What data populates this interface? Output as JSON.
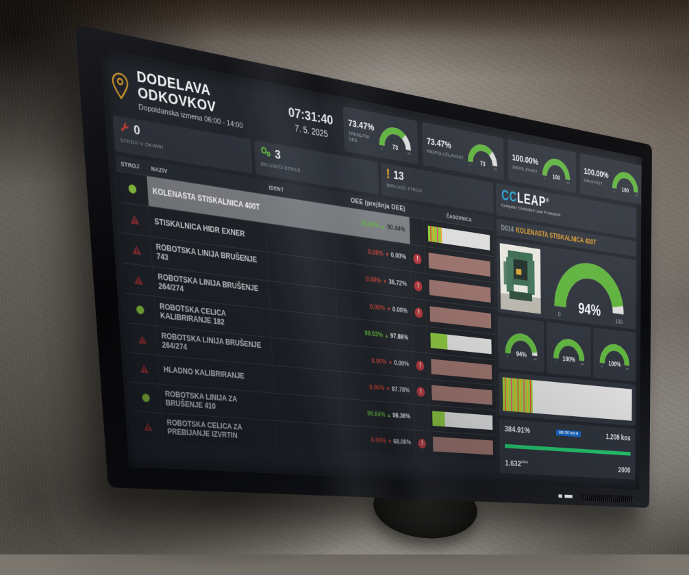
{
  "colors": {
    "bg": "#23262c",
    "panel": "#2f333b",
    "panel_dark": "#272b32",
    "green": "#5fb33d",
    "bargreen": "#8cc63f",
    "red": "#c24038",
    "tri": "#8e3036",
    "idle": "#9a726c",
    "track": "#dcdcdc",
    "sel": "#7c7e82",
    "orange": "#dd9f35",
    "teal": "#2ba4d8",
    "badge": "#1565c0",
    "progress": "#27c46d",
    "yellow": "#f0ad1f",
    "text": "#dfe2e5",
    "muted": "#9aa0a8"
  },
  "gauge_scale": {
    "min": "0",
    "max": "100"
  },
  "header": {
    "location": {
      "title": "DODELAVA ODKOVKOV",
      "subtitle": "Dopoldanska izmena 06:00 - 14:00"
    },
    "clock": {
      "time": "07:31:40",
      "date": "7. 5. 2025"
    },
    "kpis": [
      {
        "value": "73.47%",
        "label": "TRENUTNI OEE",
        "gauge_value": 73,
        "gauge_label": "73"
      },
      {
        "value": "73.47%",
        "label": "RAZPOLOŽLJIVOST",
        "gauge_value": 73,
        "gauge_label": "73"
      },
      {
        "value": "100.00%",
        "label": "ZMOGLJIVOST",
        "gauge_value": 100,
        "gauge_label": "100"
      },
      {
        "value": "100.00%",
        "label": "KAKOVOST",
        "gauge_value": 100,
        "gauge_label": "100"
      }
    ]
  },
  "counters": [
    {
      "value": "0",
      "label": "STROJI V OKVARI",
      "icon": "wrench-icon"
    },
    {
      "value": "3",
      "label": "DELUJOČI STROJI",
      "icon": "gears-icon"
    },
    {
      "value": "13",
      "label": "MIRUJOČI STROJI",
      "icon": "warning-icon"
    }
  ],
  "table": {
    "headers": {
      "stroj": "STROJ",
      "naziv": "NAZIV",
      "ident": "IDENT",
      "oee": "OEE (prejšnja OEE)",
      "casovnica": "ČASOVNICA"
    },
    "rows": [
      {
        "status": "ok",
        "name": "KOLENASTA STISKALNICA 400T",
        "ident": "",
        "oee": "93.90%",
        "trend": "up",
        "oee_prev": "90.44%",
        "alert": false,
        "selected": true,
        "bar": {
          "kind": "striped",
          "value": 22
        }
      },
      {
        "status": "fault",
        "name": "STISKALNICA HIDR EXNER",
        "ident": "",
        "oee": "0.00%",
        "trend": "down",
        "oee_prev": "0.00%",
        "alert": true,
        "selected": false,
        "bar": {
          "kind": "idle",
          "value": 100
        }
      },
      {
        "status": "fault",
        "name": "ROBOTSKA LINIJA BRUŠENJE 743",
        "ident": "",
        "oee": "0.00%",
        "trend": "down",
        "oee_prev": "36.72%",
        "alert": true,
        "selected": false,
        "bar": {
          "kind": "idle",
          "value": 100
        }
      },
      {
        "status": "fault",
        "name": "ROBOTSKA LINIJA BRUŠENJE 264/274",
        "ident": "",
        "oee": "0.00%",
        "trend": "down",
        "oee_prev": "0.00%",
        "alert": true,
        "selected": false,
        "bar": {
          "kind": "idle",
          "value": 100
        }
      },
      {
        "status": "ok",
        "name": "ROBOTSKA CELICA KALIBRIRANJE 182",
        "ident": "",
        "oee": "99.63%",
        "trend": "up",
        "oee_prev": "97.86%",
        "alert": false,
        "selected": false,
        "bar": {
          "kind": "green",
          "value": 27
        }
      },
      {
        "status": "fault",
        "name": "ROBOTSKA LINIJA BRUŠENJE 264/274",
        "ident": "",
        "oee": "0.00%",
        "trend": "down",
        "oee_prev": "0.00%",
        "alert": true,
        "selected": false,
        "bar": {
          "kind": "idle",
          "value": 100
        }
      },
      {
        "status": "fault",
        "name": "HLADNO KALIBRIRANJE",
        "ident": "",
        "oee": "0.00%",
        "trend": "down",
        "oee_prev": "87.78%",
        "alert": true,
        "selected": false,
        "bar": {
          "kind": "idle",
          "value": 100
        }
      },
      {
        "status": "ok",
        "name": "ROBOTSKA LINIJA ZA BRUŠENJE 410",
        "ident": "",
        "oee": "99.64%",
        "trend": "up",
        "oee_prev": "98.38%",
        "alert": false,
        "selected": false,
        "bar": {
          "kind": "green",
          "value": 20
        }
      },
      {
        "status": "fault",
        "name": "ROBOTSKA CELICA ZA PREBIJANJE IZVRTIN",
        "ident": "",
        "oee": "0.00%",
        "trend": "down",
        "oee_prev": "68.06%",
        "alert": true,
        "selected": false,
        "bar": {
          "kind": "idle",
          "value": 100
        }
      }
    ]
  },
  "panel": {
    "logo": {
      "cc": "CC",
      "leap": "LEAP",
      "reg": "®",
      "tagline": "Computer Controlled Lean Production"
    },
    "machine": {
      "code": "D014",
      "name": "KOLENASTA STISKALNICA 400T"
    },
    "main_gauge": {
      "value": 94,
      "label": "94%"
    },
    "gauges": [
      {
        "value": 94,
        "label": "94%"
      },
      {
        "value": 100,
        "label": "100%"
      },
      {
        "value": 100,
        "label": "100%"
      }
    ],
    "timeline_bar": {
      "kind": "striped",
      "value": 22
    },
    "stats": {
      "percent": "384.91%",
      "badge": "380-757-003 N",
      "pieces": "1.208 kos",
      "progress": 100,
      "count": "1.632",
      "count_sub": "/434",
      "target": "2000"
    }
  }
}
